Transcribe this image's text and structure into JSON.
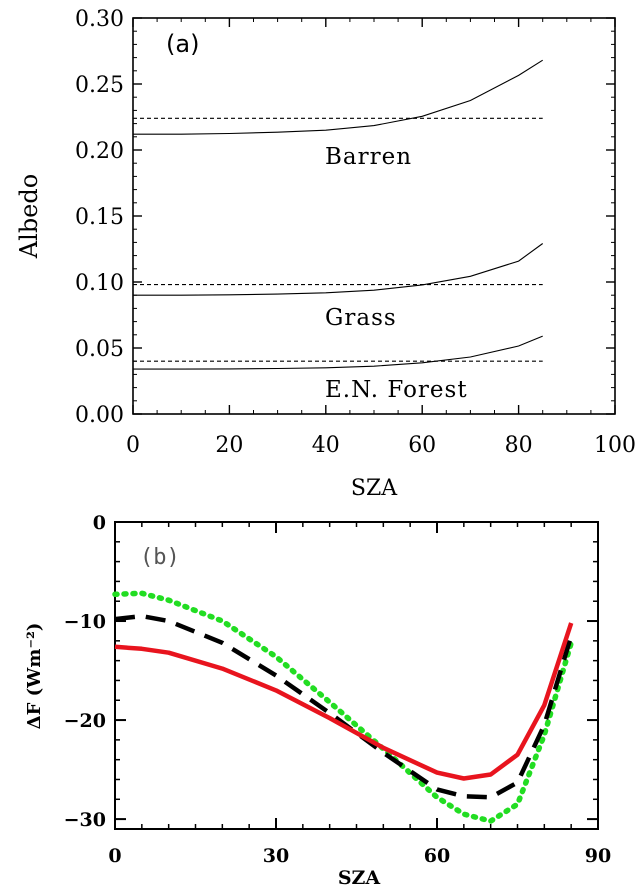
{
  "chart_data": [
    {
      "type": "line",
      "panel_label": "(a)",
      "xlabel": "SZA",
      "ylabel": "Albedo",
      "xlim": [
        0,
        100
      ],
      "ylim": [
        0,
        0.3
      ],
      "xticks": [
        "0",
        "20",
        "40",
        "60",
        "80",
        "100"
      ],
      "yticks": [
        "0.00",
        "0.05",
        "0.10",
        "0.15",
        "0.20",
        "0.25",
        "0.30"
      ],
      "x": [
        0,
        10,
        20,
        30,
        40,
        50,
        60,
        70,
        80,
        85
      ],
      "series": [
        {
          "name": "Barren",
          "style": "solid",
          "values": [
            0.212,
            0.212,
            0.2125,
            0.2135,
            0.215,
            0.2185,
            0.2255,
            0.2375,
            0.2565,
            0.268
          ]
        },
        {
          "style": "dotted",
          "values": [
            0.224,
            0.224,
            0.224,
            0.224,
            0.224,
            0.224,
            0.224,
            0.224,
            0.224,
            0.224
          ]
        },
        {
          "name": "Grass",
          "style": "solid",
          "values": [
            0.09,
            0.09,
            0.0903,
            0.0908,
            0.0918,
            0.0938,
            0.0978,
            0.1043,
            0.1158,
            0.1292
          ]
        },
        {
          "style": "dotted",
          "values": [
            0.098,
            0.098,
            0.098,
            0.098,
            0.098,
            0.098,
            0.098,
            0.098,
            0.098,
            0.098
          ]
        },
        {
          "name": "E.N. Forest",
          "style": "solid",
          "values": [
            0.034,
            0.034,
            0.0342,
            0.0345,
            0.035,
            0.0362,
            0.0388,
            0.0432,
            0.0515,
            0.059
          ]
        },
        {
          "style": "dotted",
          "values": [
            0.04,
            0.04,
            0.04,
            0.04,
            0.04,
            0.04,
            0.04,
            0.04,
            0.04,
            0.04
          ]
        }
      ],
      "grid": false
    },
    {
      "type": "line",
      "panel_label": "(b)",
      "xlabel": "SZA",
      "ylabel": "ΔF (Wm⁻²)",
      "xlim": [
        0,
        90
      ],
      "ylim": [
        -31,
        0
      ],
      "xticks": [
        "0",
        "30",
        "60",
        "90"
      ],
      "yticks": [
        "−30",
        "−20",
        "−10",
        "0"
      ],
      "x": [
        0,
        5,
        10,
        20,
        30,
        40,
        50,
        60,
        65,
        70,
        75,
        80,
        85
      ],
      "series": [
        {
          "style": "solid",
          "color": "#e8141e",
          "values": [
            -12.6,
            -12.8,
            -13.2,
            -14.8,
            -17.0,
            -19.8,
            -22.8,
            -25.3,
            -25.9,
            -25.5,
            -23.5,
            -18.5,
            -10.2
          ]
        },
        {
          "style": "dashed",
          "color": "#000000",
          "values": [
            -9.8,
            -9.5,
            -10.0,
            -12.2,
            -15.5,
            -19.3,
            -23.3,
            -27.0,
            -27.7,
            -27.8,
            -26.3,
            -20.5,
            -11.5
          ]
        },
        {
          "style": "dotted",
          "color": "#22dd22",
          "values": [
            -7.3,
            -7.2,
            -7.9,
            -10.0,
            -13.6,
            -18.2,
            -22.9,
            -27.8,
            -29.5,
            -30.2,
            -28.5,
            -21.5,
            -12.2
          ]
        }
      ],
      "grid": false
    }
  ]
}
